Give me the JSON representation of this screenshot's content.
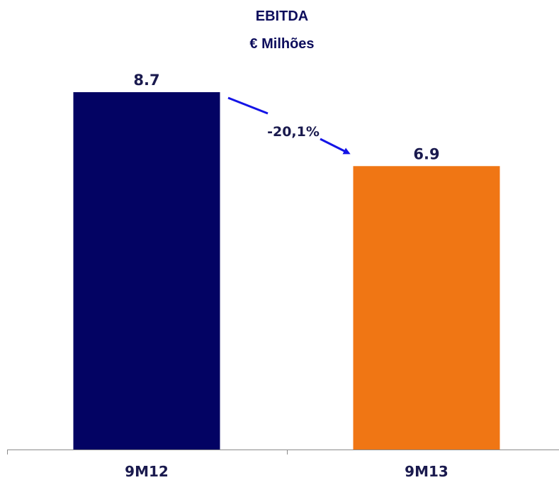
{
  "chart_data": {
    "type": "bar",
    "title": "EBITDA",
    "subtitle": "€ Milhões",
    "categories": [
      "9M12",
      "9M13"
    ],
    "values": [
      8.7,
      6.9
    ],
    "value_labels": [
      "8.7",
      "6.9"
    ],
    "colors": [
      "#030363",
      "#F07614"
    ],
    "ylim": [
      0,
      8.7
    ],
    "grid": false,
    "annotation": {
      "text": "-20,1%",
      "from": "9M12",
      "to": "9M13",
      "arrow_color": "#1414E6"
    },
    "text_color": "#1A1A4E",
    "title_color": "#0D0D5C"
  }
}
